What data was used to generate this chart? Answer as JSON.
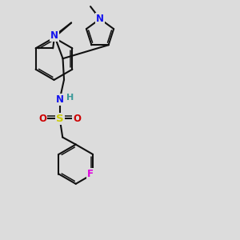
{
  "bg": "#dcdcdc",
  "bc": "#111111",
  "Nc": "#1515EE",
  "Sc": "#cccc00",
  "Oc": "#cc0000",
  "Fc": "#dd00dd",
  "Hc": "#3a9999",
  "lw": 1.5,
  "lw2": 1.1,
  "fs": 8.5,
  "off": 0.075,
  "xlim": [
    0,
    10
  ],
  "ylim": [
    0,
    10
  ]
}
